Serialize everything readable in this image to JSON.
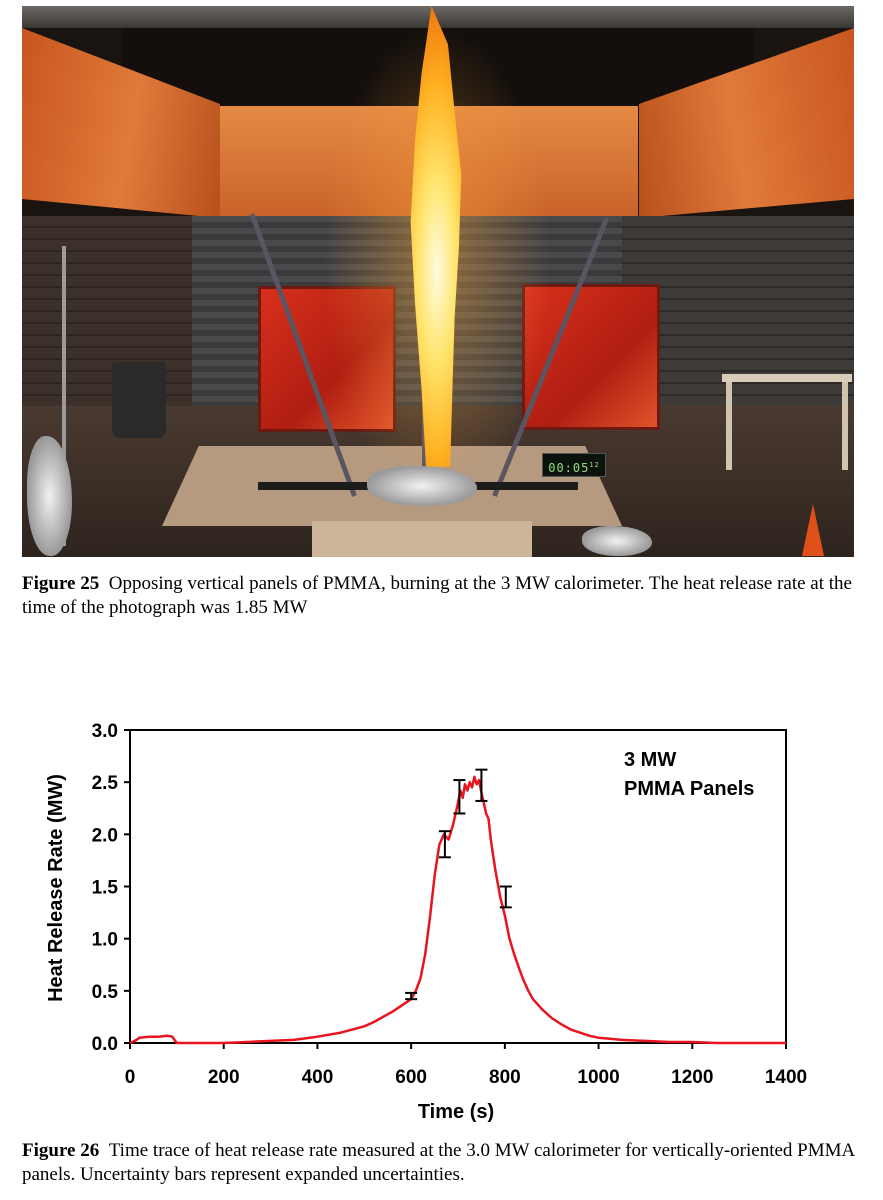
{
  "figure25": {
    "photo": {
      "timer_display": "00:05",
      "timer_small": "12"
    },
    "caption_label": "Figure 25",
    "caption_text": "Opposing vertical panels of PMMA, burning at the 3 MW calorimeter.  The heat release rate at the time of the photograph was 1.85 MW"
  },
  "figure26": {
    "caption_label": "Figure 26",
    "caption_text": "Time trace of heat release rate measured at the 3.0 MW calorimeter for vertically-oriented PMMA panels.  Uncertainty bars represent expanded uncertainties."
  },
  "chart_data": {
    "type": "line",
    "title": "",
    "annotation_lines": [
      "3 MW",
      "PMMA Panels"
    ],
    "annotation_placement": "top-right",
    "xlabel": "Time (s)",
    "ylabel": "Heat Release Rate (MW)",
    "xlim": [
      0,
      1400
    ],
    "ylim": [
      0,
      3.0
    ],
    "x_ticks": [
      0,
      200,
      400,
      600,
      800,
      1000,
      1200,
      1400
    ],
    "x_tick_labels": [
      "0",
      "200",
      "400",
      "600",
      "800",
      "1000",
      "1200",
      "1400"
    ],
    "y_ticks": [
      0,
      0.5,
      1.0,
      1.5,
      2.0,
      2.5,
      3.0
    ],
    "y_tick_labels": [
      "0.0",
      "0.5",
      "1.0",
      "1.5",
      "2.0",
      "2.5",
      "3.0"
    ],
    "grid": false,
    "legend": "none",
    "series_color": "#e8141e",
    "series": [
      {
        "x": [
          0,
          10,
          20,
          40,
          60,
          80,
          90,
          95,
          100,
          110,
          150,
          200,
          250,
          300,
          350,
          400,
          450,
          500,
          520,
          540,
          560,
          580,
          600,
          610,
          620,
          630,
          640,
          650,
          660,
          670,
          680,
          690,
          700,
          705,
          710,
          715,
          720,
          725,
          730,
          735,
          740,
          745,
          750,
          755,
          760,
          765,
          770,
          775,
          780,
          790,
          800,
          810,
          820,
          830,
          840,
          850,
          860,
          880,
          900,
          920,
          940,
          960,
          980,
          1000,
          1050,
          1100,
          1150,
          1200,
          1250,
          1300,
          1350,
          1400
        ],
        "y": [
          0.0,
          0.02,
          0.05,
          0.06,
          0.06,
          0.07,
          0.06,
          0.03,
          0.0,
          0.0,
          0.0,
          0.0,
          0.01,
          0.02,
          0.03,
          0.06,
          0.1,
          0.16,
          0.2,
          0.25,
          0.3,
          0.36,
          0.42,
          0.5,
          0.62,
          0.85,
          1.2,
          1.6,
          1.9,
          2.0,
          1.95,
          2.1,
          2.3,
          2.42,
          2.35,
          2.48,
          2.42,
          2.5,
          2.45,
          2.55,
          2.48,
          2.52,
          2.4,
          2.3,
          2.2,
          2.15,
          1.95,
          1.8,
          1.65,
          1.4,
          1.22,
          1.0,
          0.85,
          0.72,
          0.6,
          0.5,
          0.42,
          0.32,
          0.24,
          0.18,
          0.13,
          0.1,
          0.07,
          0.05,
          0.03,
          0.02,
          0.01,
          0.01,
          0.0,
          0.0,
          0.0,
          0.0
        ]
      }
    ],
    "error_bars": [
      {
        "x": 600,
        "low": 0.42,
        "high": 0.48
      },
      {
        "x": 672,
        "low": 1.78,
        "high": 2.03
      },
      {
        "x": 703,
        "low": 2.2,
        "high": 2.52
      },
      {
        "x": 750,
        "low": 2.32,
        "high": 2.62
      },
      {
        "x": 802,
        "low": 1.3,
        "high": 1.5
      }
    ]
  }
}
